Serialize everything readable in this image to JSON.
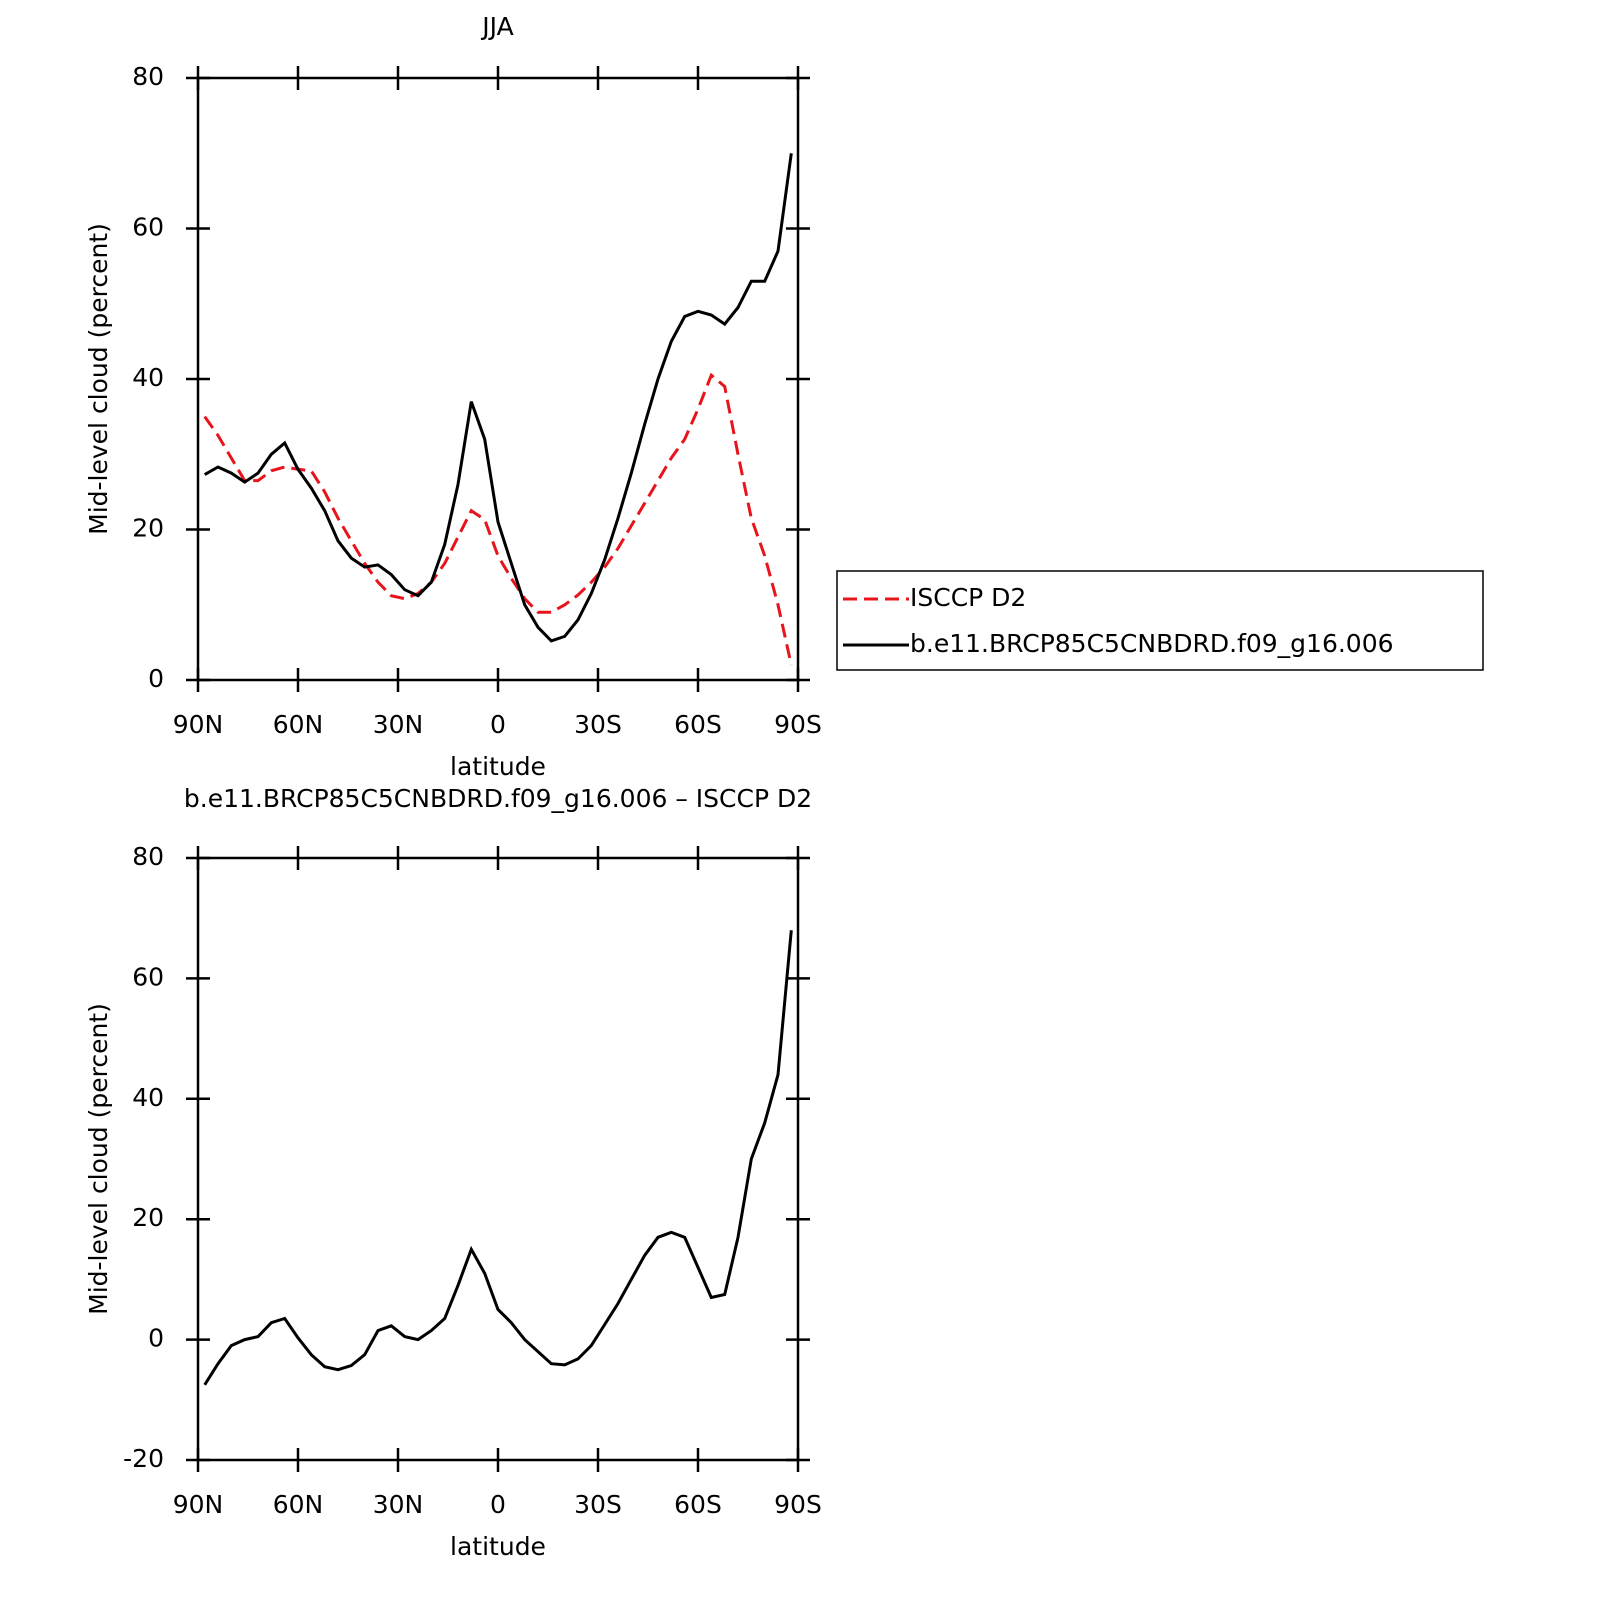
{
  "chart_data": [
    {
      "type": "line",
      "title": "JJA",
      "xlabel": "latitude",
      "ylabel": "Mid-level cloud (percent)",
      "x": [
        88,
        84,
        80,
        76,
        72,
        68,
        64,
        60,
        56,
        52,
        48,
        44,
        40,
        36,
        32,
        28,
        24,
        20,
        16,
        12,
        8,
        4,
        0,
        -4,
        -8,
        -12,
        -16,
        -20,
        -24,
        -28,
        -32,
        -36,
        -40,
        -44,
        -48,
        -52,
        -56,
        -60,
        -64,
        -68,
        -72,
        -76,
        -80,
        -84,
        -88
      ],
      "series": [
        {
          "name": "ISCCP D2",
          "color": "#e8141c",
          "linestyle": "dashed",
          "values": [
            35,
            32.5,
            29.5,
            26.5,
            26.5,
            27.8,
            28.3,
            28,
            27.8,
            25,
            21.5,
            18.5,
            15.5,
            13,
            11.2,
            10.8,
            11.5,
            13,
            15.5,
            19,
            22.5,
            21.3,
            16.5,
            13.5,
            10.8,
            9,
            9,
            10,
            11.3,
            13,
            15,
            17.5,
            20.5,
            23.5,
            26.5,
            29.5,
            32,
            36,
            40.5,
            39,
            30,
            21.5,
            16.5,
            10,
            2
          ]
        },
        {
          "name": "b.e11.BRCP85C5CNBDRD.f09_g16.006",
          "color": "#000000",
          "linestyle": "solid",
          "values": [
            27.3,
            28.3,
            27.5,
            26.3,
            27.5,
            30,
            31.5,
            28,
            25.5,
            22.5,
            18.5,
            16.2,
            15,
            15.3,
            14,
            12,
            11.2,
            13,
            18,
            26,
            37,
            32,
            21,
            15.5,
            10,
            7,
            5.2,
            5.8,
            8,
            11.5,
            16,
            21.5,
            27.5,
            34,
            40,
            45,
            48.3,
            49,
            48.5,
            47.3,
            49.5,
            53,
            53,
            57,
            70
          ]
        }
      ],
      "xlim": [
        90,
        -90
      ],
      "xticks": [
        {
          "value": 90,
          "label": "90N"
        },
        {
          "value": 60,
          "label": "60N"
        },
        {
          "value": 30,
          "label": "30N"
        },
        0,
        {
          "value": -30,
          "label": "30S"
        },
        {
          "value": -60,
          "label": "60S"
        },
        {
          "value": -90,
          "label": "90S"
        }
      ],
      "ylim": [
        0,
        80
      ],
      "yticks": [
        0,
        20,
        40,
        60,
        80
      ],
      "legend": "right"
    },
    {
      "type": "line",
      "title": "b.e11.BRCP85C5CNBDRD.f09_g16.006 – ISCCP D2",
      "xlabel": "latitude",
      "ylabel": "Mid-level cloud (percent)",
      "x": [
        88,
        84,
        80,
        76,
        72,
        68,
        64,
        60,
        56,
        52,
        48,
        44,
        40,
        36,
        32,
        28,
        24,
        20,
        16,
        12,
        8,
        4,
        0,
        -4,
        -8,
        -12,
        -16,
        -20,
        -24,
        -28,
        -32,
        -36,
        -40,
        -44,
        -48,
        -52,
        -56,
        -60,
        -64,
        -68,
        -72,
        -76,
        -80,
        -84,
        -88
      ],
      "values": [
        -7.5,
        -4,
        -1,
        0,
        0.5,
        2.8,
        3.5,
        0.3,
        -2.5,
        -4.5,
        -5,
        -4.3,
        -2.5,
        1.5,
        2.3,
        0.5,
        0,
        1.5,
        3.5,
        9,
        15,
        11,
        5,
        2.8,
        0,
        -2,
        -4,
        -4.2,
        -3.2,
        -1,
        2.5,
        6,
        10,
        14,
        17,
        17.8,
        17,
        12,
        7,
        7.5,
        17,
        30,
        36,
        44,
        68
      ],
      "color": "#000000",
      "xlim": [
        90,
        -90
      ],
      "xticks": [
        {
          "value": 90,
          "label": "90N"
        },
        {
          "value": 60,
          "label": "60N"
        },
        {
          "value": 30,
          "label": "30N"
        },
        0,
        {
          "value": -30,
          "label": "30S"
        },
        {
          "value": -60,
          "label": "60S"
        },
        {
          "value": -90,
          "label": "90S"
        }
      ],
      "ylim": [
        -20,
        80
      ],
      "yticks": [
        -20,
        0,
        20,
        40,
        60,
        80
      ]
    }
  ]
}
